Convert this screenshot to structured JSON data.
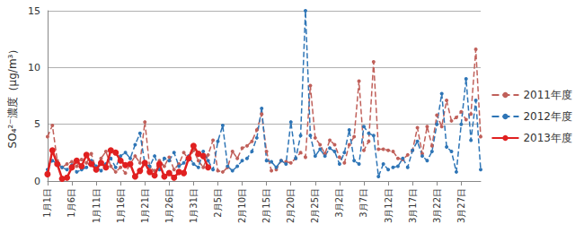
{
  "chart_data": {
    "type": "line",
    "y_label": "SO₄²⁻濃度（μg/m³）",
    "categories": [
      "1月1日",
      null,
      null,
      null,
      null,
      "1月6日",
      null,
      null,
      null,
      null,
      "1月11日",
      null,
      null,
      null,
      null,
      "1月16日",
      null,
      null,
      null,
      null,
      "1月21日",
      null,
      null,
      null,
      null,
      "1月26日",
      null,
      null,
      null,
      null,
      "1月31日",
      null,
      null,
      null,
      null,
      "2月5日",
      null,
      null,
      null,
      null,
      "2月10日",
      null,
      null,
      null,
      null,
      "2月15日",
      null,
      null,
      null,
      null,
      "2月20日",
      null,
      null,
      null,
      null,
      "2月25日",
      null,
      null,
      null,
      null,
      "3月2日",
      null,
      null,
      null,
      null,
      "3月7日",
      null,
      null,
      null,
      null,
      "3月12日",
      null,
      null,
      null,
      null,
      "3月17日",
      null,
      null,
      null,
      null,
      "3月22日",
      null,
      null,
      null,
      null,
      "3月27日",
      null,
      null,
      null,
      null
    ],
    "series": [
      {
        "name": "2011年度",
        "color": "#c0605a",
        "line_style": "dashed",
        "marker": "circle",
        "values": [
          3.9,
          4.9,
          1.8,
          1.2,
          1.5,
          1.7,
          1.3,
          1.9,
          1.6,
          2.4,
          1.0,
          2.0,
          2.6,
          1.3,
          0.8,
          1.2,
          0.7,
          1.5,
          2.2,
          1.6,
          5.2,
          1.2,
          0.9,
          1.8,
          1.3,
          2.1,
          1.0,
          1.5,
          2.5,
          1.9,
          2.7,
          1.8,
          1.2,
          2.3,
          3.6,
          0.9,
          0.8,
          1.2,
          2.6,
          2.0,
          2.9,
          3.1,
          3.5,
          4.5,
          5.9,
          2.6,
          0.9,
          1.0,
          1.8,
          1.7,
          1.6,
          2.0,
          2.5,
          2.1,
          8.4,
          3.8,
          3.2,
          2.4,
          3.6,
          3.2,
          2.1,
          1.6,
          3.2,
          3.9,
          8.8,
          2.7,
          3.5,
          10.5,
          2.8,
          2.8,
          2.7,
          2.6,
          2.0,
          1.9,
          2.3,
          2.7,
          4.7,
          2.4,
          4.8,
          3.1,
          5.8,
          4.8,
          7.1,
          5.3,
          5.6,
          6.1,
          5.4,
          5.9,
          11.6,
          3.9
        ]
      },
      {
        "name": "2012年度",
        "color": "#2e75b6",
        "line_style": "dashed",
        "marker": "circle",
        "values": [
          1.0,
          1.8,
          1.5,
          1.2,
          1.0,
          1.4,
          0.8,
          1.0,
          1.2,
          1.8,
          1.3,
          0.9,
          1.5,
          2.0,
          1.2,
          2.2,
          2.5,
          2.0,
          3.2,
          4.2,
          1.5,
          1.3,
          2.2,
          1.0,
          2.0,
          1.8,
          2.5,
          1.3,
          1.6,
          2.2,
          1.5,
          1.2,
          2.6,
          1.8,
          1.0,
          3.5,
          4.9,
          1.3,
          0.9,
          1.3,
          1.8,
          2.0,
          2.6,
          3.8,
          6.4,
          1.8,
          1.7,
          1.2,
          1.8,
          1.5,
          5.2,
          2.0,
          4.0,
          15.0,
          4.0,
          2.2,
          2.8,
          2.2,
          2.9,
          2.6,
          1.5,
          2.5,
          4.5,
          1.8,
          1.5,
          4.8,
          4.2,
          4.0,
          0.4,
          1.5,
          1.0,
          1.2,
          1.3,
          2.0,
          1.2,
          2.7,
          3.5,
          2.2,
          1.8,
          2.6,
          5.0,
          7.7,
          3.0,
          2.6,
          0.8,
          5.0,
          9.0,
          3.6,
          7.1,
          1.0
        ]
      },
      {
        "name": "2013年度",
        "color": "#e02020",
        "line_style": "solid",
        "marker": "circle",
        "values": [
          0.6,
          2.7,
          1.5,
          0.2,
          0.3,
          1.2,
          1.8,
          1.3,
          2.3,
          1.5,
          1.0,
          1.6,
          1.2,
          2.7,
          2.5,
          1.8,
          1.4,
          1.5,
          0.4,
          0.9,
          1.6,
          0.8,
          0.5,
          1.5,
          0.4,
          0.7,
          0.3,
          0.8,
          0.7,
          2.0,
          3.1,
          2.4,
          2.2,
          1.2,
          null,
          null,
          null,
          null,
          null,
          null,
          null,
          null,
          null,
          null,
          null,
          null,
          null,
          null,
          null,
          null,
          null,
          null,
          null,
          null,
          null,
          null,
          null,
          null,
          null,
          null,
          null,
          null,
          null,
          null,
          null,
          null,
          null,
          null,
          null,
          null,
          null,
          null,
          null,
          null,
          null,
          null,
          null,
          null,
          null,
          null,
          null,
          null,
          null,
          null,
          null,
          null,
          null,
          null,
          null,
          null
        ]
      }
    ],
    "ylim": [
      0,
      15
    ],
    "yticks": [
      0,
      5,
      10,
      15
    ],
    "grid": true,
    "legend": "right"
  }
}
